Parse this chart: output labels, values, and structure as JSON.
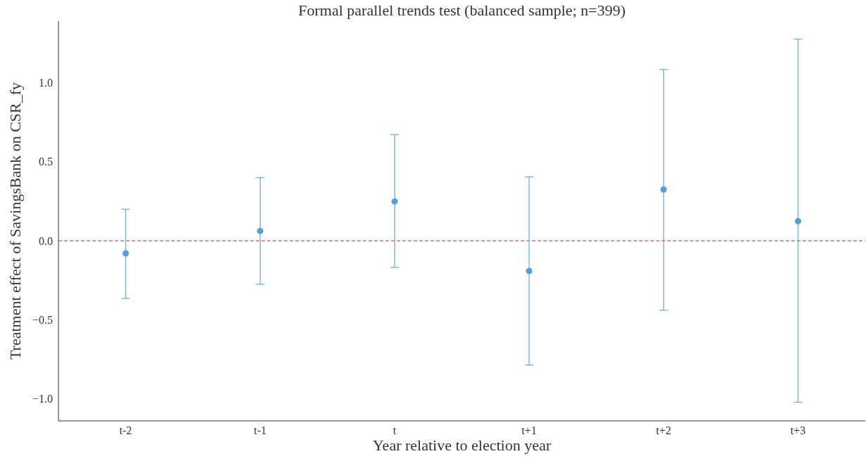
{
  "chart_data": {
    "type": "scatter",
    "title": "Formal parallel trends test (balanced sample; n=399)",
    "xlabel": "Year relative to election year",
    "ylabel": "Treatment effect of SavingsBank on CSR_fy",
    "categories": [
      "t-2",
      "t-1",
      "t",
      "t+1",
      "t+2",
      "t+3"
    ],
    "series": [
      {
        "color": "#5b9fd0",
        "values": [
          -0.08,
          0.062,
          0.249,
          -0.191,
          0.324,
          0.124
        ],
        "errors": [
          [
            -0.365,
            0.2
          ],
          [
            -0.276,
            0.4
          ],
          [
            -0.169,
            0.671
          ],
          [
            -0.787,
            0.404
          ],
          [
            -0.44,
            1.084
          ],
          [
            -1.022,
            1.276
          ]
        ]
      }
    ],
    "ylim": [
      -1.14,
      1.39
    ],
    "yticks": [
      {
        "value": -1,
        "label": "−1.0"
      },
      {
        "value": -0.5,
        "label": "−0.5"
      },
      {
        "value": 0,
        "label": "0.0"
      },
      {
        "value": 0.5,
        "label": "0.5"
      },
      {
        "value": 1,
        "label": "1.0"
      }
    ],
    "ref_lines": [
      {
        "axis": "y",
        "value": 0,
        "color": "#d9534f",
        "line_style": "dashed"
      }
    ],
    "grid": false,
    "marker": "circle"
  }
}
